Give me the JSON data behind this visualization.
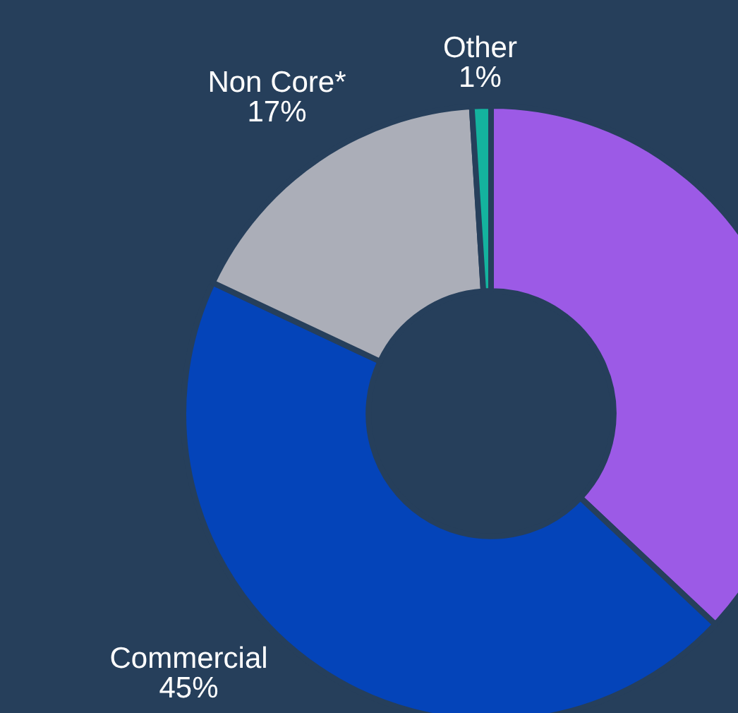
{
  "chart_data": {
    "type": "donut",
    "categories": [
      null,
      "Commercial",
      "Non Core*",
      "Other"
    ],
    "values": [
      37,
      45,
      17,
      1
    ],
    "colors": [
      "#9c5ae6",
      "#0444b9",
      "#abaeb8",
      "#14b39e"
    ],
    "value_labels": [
      null,
      "45%",
      "17%",
      "1%"
    ],
    "legend": false
  }
}
